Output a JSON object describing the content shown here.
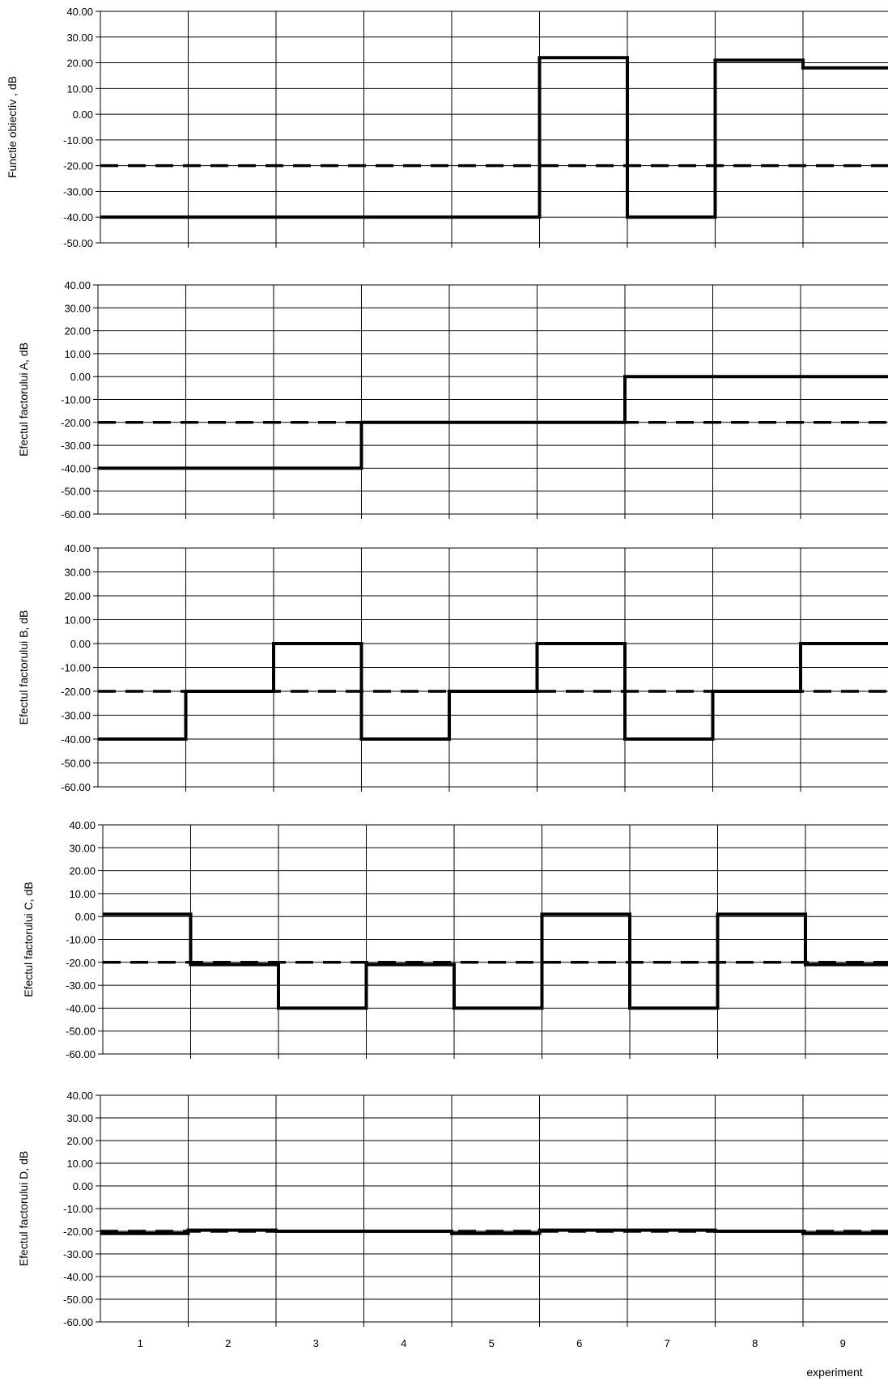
{
  "chart_data": [
    {
      "type": "line",
      "ylabel": "Functie obiectiv , dB",
      "ylim": [
        -50,
        40
      ],
      "yticks": [
        "40.00",
        "30.00",
        "20.00",
        "10.00",
        "0.00",
        "-10.00",
        "-20.00",
        "-30.00",
        "-40.00",
        "-50.00"
      ],
      "categories": [
        "1",
        "2",
        "3",
        "4",
        "5",
        "6",
        "7",
        "8",
        "9"
      ],
      "series": [
        {
          "style": "solid",
          "values": [
            -40,
            -40,
            -40,
            -40,
            -40,
            22,
            -40,
            21,
            18
          ]
        },
        {
          "style": "dashed",
          "values": [
            -20,
            -20,
            -20,
            -20,
            -20,
            -20,
            -20,
            -20,
            -20
          ]
        }
      ],
      "grid": true
    },
    {
      "type": "line",
      "ylabel": "Efectul factorului A, dB",
      "ylim": [
        -60,
        40
      ],
      "yticks": [
        "40.00",
        "30.00",
        "20.00",
        "10.00",
        "0.00",
        "-10.00",
        "-20.00",
        "-30.00",
        "-40.00",
        "-50.00",
        "-60.00"
      ],
      "categories": [
        "1",
        "2",
        "3",
        "4",
        "5",
        "6",
        "7",
        "8",
        "9"
      ],
      "series": [
        {
          "style": "solid",
          "values": [
            -40,
            -40,
            -40,
            -20,
            -20,
            -20,
            0,
            0,
            0
          ]
        },
        {
          "style": "dashed",
          "values": [
            -20,
            -20,
            -20,
            -20,
            -20,
            -20,
            -20,
            -20,
            -20
          ]
        }
      ],
      "grid": true
    },
    {
      "type": "line",
      "ylabel": "Efectul factorului B, dB",
      "ylim": [
        -60,
        40
      ],
      "yticks": [
        "40.00",
        "30.00",
        "20.00",
        "10.00",
        "0.00",
        "-10.00",
        "-20.00",
        "-30.00",
        "-40.00",
        "-50.00",
        "-60.00"
      ],
      "categories": [
        "1",
        "2",
        "3",
        "4",
        "5",
        "6",
        "7",
        "8",
        "9"
      ],
      "series": [
        {
          "style": "solid",
          "values": [
            -40,
            -20,
            0,
            -40,
            -20,
            0,
            -40,
            -20,
            0
          ]
        },
        {
          "style": "dashed",
          "values": [
            -20,
            -20,
            -20,
            -20,
            -20,
            -20,
            -20,
            -20,
            -20
          ]
        }
      ],
      "grid": true
    },
    {
      "type": "line",
      "ylabel": "Efectul factorului C, dB",
      "ylim": [
        -60,
        40
      ],
      "yticks": [
        "40.00",
        "30.00",
        "20.00",
        "10.00",
        "0.00",
        "-10.00",
        "-20.00",
        "-30.00",
        "-40.00",
        "-50.00",
        "-60.00"
      ],
      "categories": [
        "1",
        "2",
        "3",
        "4",
        "5",
        "6",
        "7",
        "8",
        "9"
      ],
      "series": [
        {
          "style": "solid",
          "values": [
            1,
            -21,
            -40,
            -21,
            -40,
            1,
            -40,
            1,
            -21
          ]
        },
        {
          "style": "dashed",
          "values": [
            -20,
            -20,
            -20,
            -20,
            -20,
            -20,
            -20,
            -20,
            -20
          ]
        }
      ],
      "grid": true
    },
    {
      "type": "line",
      "ylabel": "Efectul factorului D, dB",
      "ylim": [
        -60,
        40
      ],
      "yticks": [
        "40.00",
        "30.00",
        "20.00",
        "10.00",
        "0.00",
        "-10.00",
        "-20.00",
        "-30.00",
        "-40.00",
        "-50.00",
        "-60.00"
      ],
      "categories": [
        "1",
        "2",
        "3",
        "4",
        "5",
        "6",
        "7",
        "8",
        "9"
      ],
      "xlabel": "experiment",
      "series": [
        {
          "style": "solid",
          "values": [
            -21,
            -19.5,
            -20,
            -20,
            -21,
            -19.5,
            -19.5,
            -20,
            -21
          ]
        },
        {
          "style": "dashed",
          "values": [
            -20,
            -20,
            -20,
            -20,
            -20,
            -20,
            -20,
            -20,
            -20
          ]
        }
      ],
      "grid": true
    }
  ]
}
